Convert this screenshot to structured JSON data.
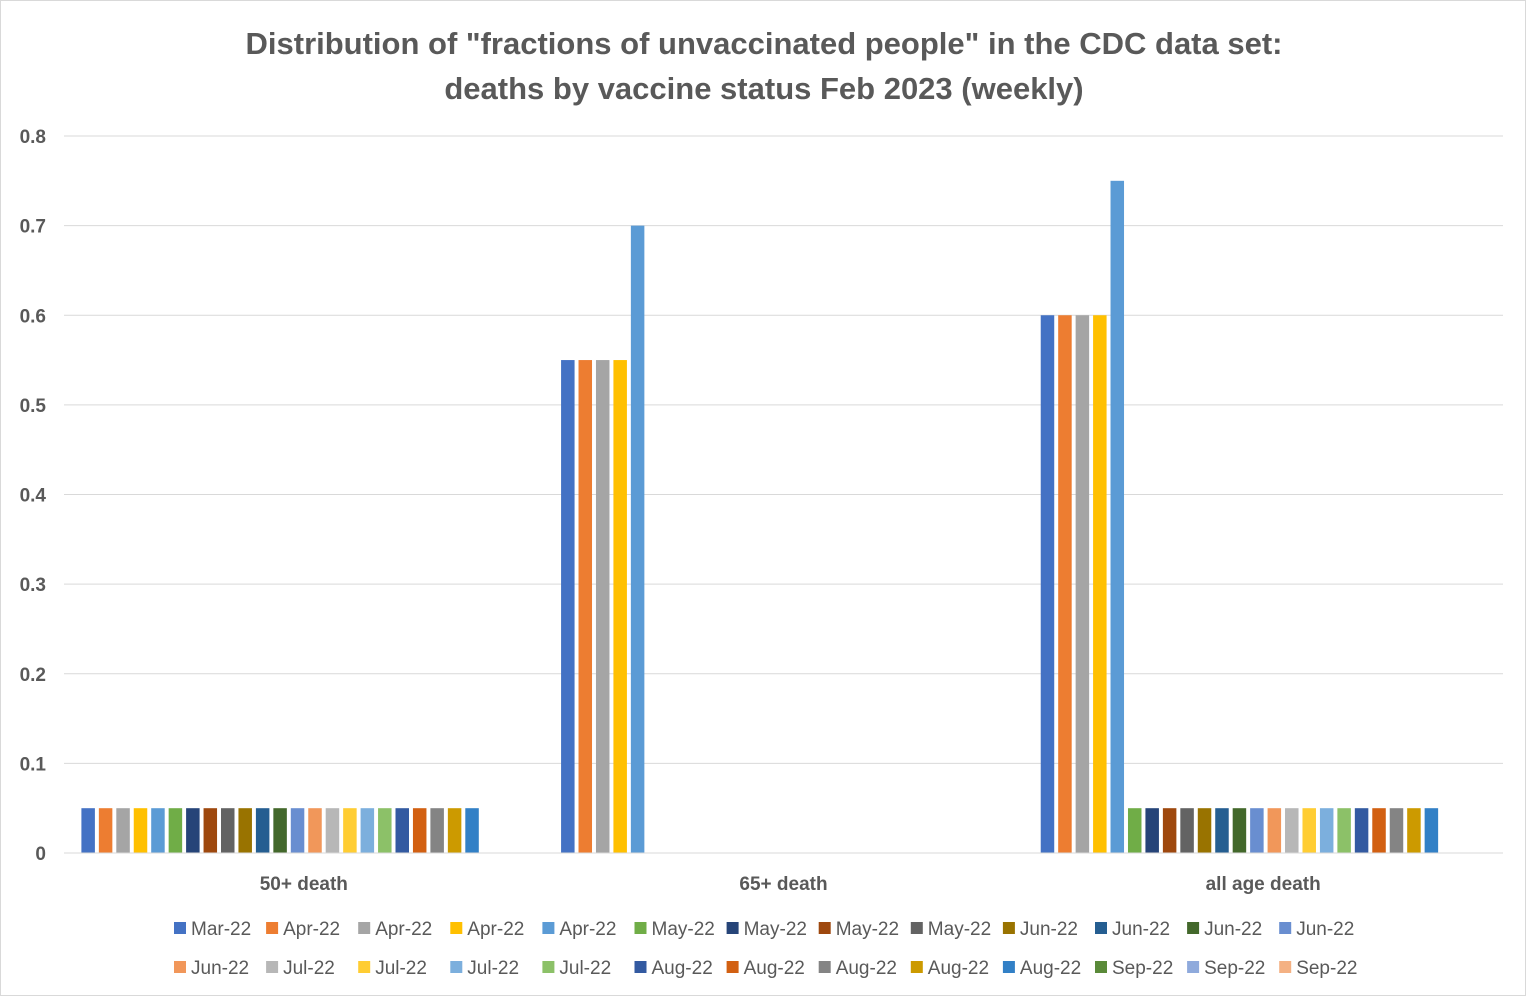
{
  "chart_data": {
    "type": "bar",
    "title": [
      "Distribution of \"fractions of unvaccinated people\" in the CDC data set:",
      "deaths by vaccine status Feb 2023 (weekly)"
    ],
    "xlabel": "",
    "ylabel": "",
    "ylim": [
      0,
      0.8
    ],
    "yticks": [
      0,
      0.1,
      0.2,
      0.3,
      0.4,
      0.5,
      0.6,
      0.7,
      0.8
    ],
    "grid": true,
    "legend": "bottom",
    "categories": [
      "50+ death",
      "65+ death",
      "all age death"
    ],
    "series": [
      {
        "name": "Mar-22",
        "color": "#4472C4",
        "values": [
          0.05,
          0.55,
          0.6
        ]
      },
      {
        "name": "Apr-22",
        "color": "#ED7D31",
        "values": [
          0.05,
          0.55,
          0.6
        ]
      },
      {
        "name": "Apr-22",
        "color": "#A5A5A5",
        "values": [
          0.05,
          0.55,
          0.6
        ]
      },
      {
        "name": "Apr-22",
        "color": "#FFC000",
        "values": [
          0.05,
          0.55,
          0.6
        ]
      },
      {
        "name": "Apr-22",
        "color": "#5B9BD5",
        "values": [
          0.05,
          0.7,
          0.75
        ]
      },
      {
        "name": "May-22",
        "color": "#70AD47",
        "values": [
          0.05,
          0,
          0.05
        ]
      },
      {
        "name": "May-22",
        "color": "#264478",
        "values": [
          0.05,
          0,
          0.05
        ]
      },
      {
        "name": "May-22",
        "color": "#9E480E",
        "values": [
          0.05,
          0,
          0.05
        ]
      },
      {
        "name": "May-22",
        "color": "#636363",
        "values": [
          0.05,
          0,
          0.05
        ]
      },
      {
        "name": "Jun-22",
        "color": "#997300",
        "values": [
          0.05,
          0,
          0.05
        ]
      },
      {
        "name": "Jun-22",
        "color": "#255E91",
        "values": [
          0.05,
          0,
          0.05
        ]
      },
      {
        "name": "Jun-22",
        "color": "#43682B",
        "values": [
          0.05,
          0,
          0.05
        ]
      },
      {
        "name": "Jun-22",
        "color": "#698ED0",
        "values": [
          0.05,
          0,
          0.05
        ]
      },
      {
        "name": "Jun-22",
        "color": "#F1975A",
        "values": [
          0.05,
          0,
          0.05
        ]
      },
      {
        "name": "Jul-22",
        "color": "#B7B7B7",
        "values": [
          0.05,
          0,
          0.05
        ]
      },
      {
        "name": "Jul-22",
        "color": "#FFCD33",
        "values": [
          0.05,
          0,
          0.05
        ]
      },
      {
        "name": "Jul-22",
        "color": "#7CAFDD",
        "values": [
          0.05,
          0,
          0.05
        ]
      },
      {
        "name": "Jul-22",
        "color": "#8CC168",
        "values": [
          0.05,
          0,
          0.05
        ]
      },
      {
        "name": "Aug-22",
        "color": "#335AA1",
        "values": [
          0.05,
          0,
          0.05
        ]
      },
      {
        "name": "Aug-22",
        "color": "#D26012",
        "values": [
          0.05,
          0,
          0.05
        ]
      },
      {
        "name": "Aug-22",
        "color": "#848484",
        "values": [
          0.05,
          0,
          0.05
        ]
      },
      {
        "name": "Aug-22",
        "color": "#CC9A00",
        "values": [
          0.05,
          0,
          0.05
        ]
      },
      {
        "name": "Aug-22",
        "color": "#3280C6",
        "values": [
          0.05,
          0,
          0.05
        ]
      },
      {
        "name": "Sep-22",
        "color": "#5A8A39",
        "values": [
          0,
          0,
          0
        ]
      },
      {
        "name": "Sep-22",
        "color": "#8FAADC",
        "values": [
          0,
          0,
          0
        ]
      },
      {
        "name": "Sep-22",
        "color": "#F4B183",
        "values": [
          0,
          0,
          0
        ]
      }
    ]
  }
}
